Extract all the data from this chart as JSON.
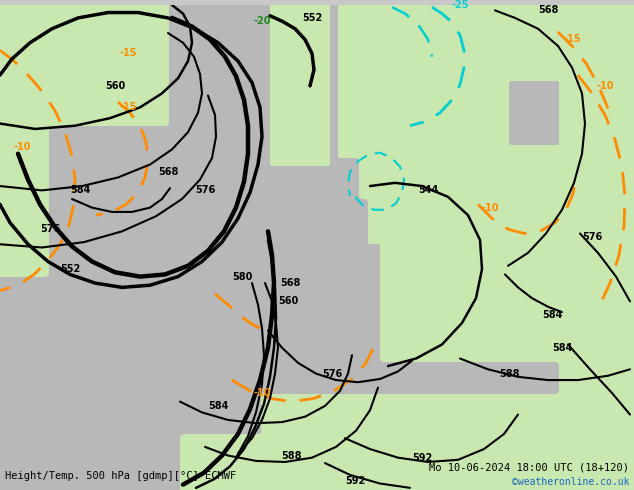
{
  "title_left": "Height/Temp. 500 hPa [gdmp][°C] ECMWF",
  "title_right": "Mo 10-06-2024 18:00 UTC (18+120)",
  "title_right2": "©weatheronline.co.uk",
  "fig_width": 6.34,
  "fig_height": 4.9,
  "dpi": 100,
  "font_size_title": 7.5,
  "font_size_copyright": 7
}
